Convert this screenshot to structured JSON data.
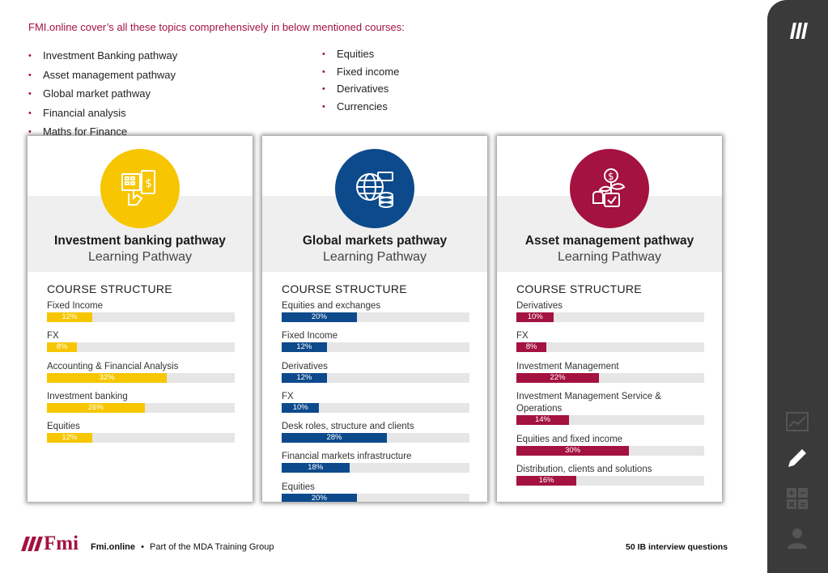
{
  "intro": "FMI.online cover’s all these topics comprehensively in below mentioned courses:",
  "left_list": [
    "Investment Banking pathway",
    "Asset management pathway",
    "Global market pathway",
    "Financial analysis",
    "Maths for Finance"
  ],
  "right_list": [
    "Equities",
    "Fixed income",
    "Derivatives",
    "Currencies"
  ],
  "cards": [
    {
      "title": "Investment banking pathway",
      "subtitle": "Learning Pathway",
      "structure_title": "COURSE STRUCTURE",
      "accent": "#f7c600",
      "icon": "calculator-hand-icon",
      "modules": [
        {
          "label": "Fixed Income",
          "percent_label": "12%",
          "percent": 12
        },
        {
          "label": "FX",
          "percent_label": "8%",
          "percent": 8
        },
        {
          "label": "Accounting & Financial Analysis",
          "percent_label": "32%",
          "percent": 32
        },
        {
          "label": "Investment banking",
          "percent_label": "26%",
          "percent": 26
        },
        {
          "label": "Equities",
          "percent_label": "12%",
          "percent": 12
        }
      ]
    },
    {
      "title": "Global markets pathway",
      "subtitle": "Learning Pathway",
      "structure_title": "COURSE STRUCTURE",
      "accent": "#0c4a8c",
      "icon": "globe-money-icon",
      "modules": [
        {
          "label": "Equities and exchanges",
          "percent_label": "20%",
          "percent": 20
        },
        {
          "label": "Fixed Income",
          "percent_label": "12%",
          "percent": 12
        },
        {
          "label": "Derivatives",
          "percent_label": "12%",
          "percent": 12
        },
        {
          "label": "FX",
          "percent_label": "10%",
          "percent": 10
        },
        {
          "label": "Desk roles, structure and clients",
          "percent_label": "28%",
          "percent": 28
        },
        {
          "label": "Financial markets infrastructure",
          "percent_label": "18%",
          "percent": 18
        },
        {
          "label": "Equities",
          "percent_label": "20%",
          "percent": 20
        }
      ]
    },
    {
      "title": "Asset management pathway",
      "subtitle": "Learning Pathway",
      "structure_title": "COURSE STRUCTURE",
      "accent": "#a4123f",
      "icon": "money-plant-icon",
      "modules": [
        {
          "label": "Derivatives",
          "percent_label": "10%",
          "percent": 10
        },
        {
          "label": "FX",
          "percent_label": "8%",
          "percent": 8
        },
        {
          "label": "Investment Management",
          "percent_label": "22%",
          "percent": 22
        },
        {
          "label": "Investment Management Service & Operations",
          "percent_label": "14%",
          "percent": 14,
          "tall": true
        },
        {
          "label": "Equities and fixed income",
          "percent_label": "30%",
          "percent": 30
        },
        {
          "label": "Distribution, clients and solutions",
          "percent_label": "16%",
          "percent": 16
        }
      ]
    }
  ],
  "footer": {
    "logo_text": "Fmi",
    "brand": "Fmi.online",
    "separator": "•",
    "tagline": "Part of the MDA Training Group",
    "right": "50 IB interview questions"
  },
  "sidebar": {
    "icons": [
      "logo-bars-icon",
      "chart-icon",
      "pencil-icon",
      "calculator-icon",
      "user-icon"
    ]
  }
}
